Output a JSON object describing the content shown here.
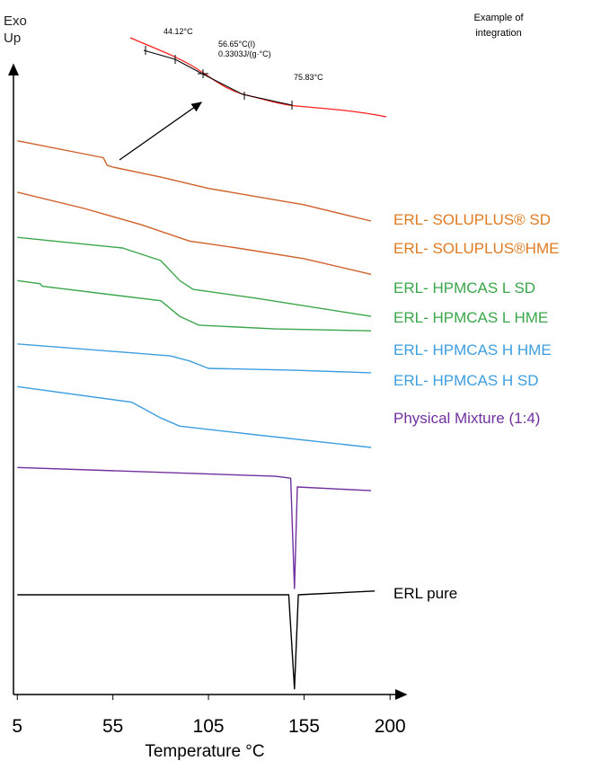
{
  "chart_data": {
    "type": "line",
    "y_label": "Exo\nUp",
    "x_label": "Temperature °C",
    "xlim": [
      3,
      206
    ],
    "ylim": [
      0,
      100
    ],
    "xticks": [
      5,
      55,
      105,
      155,
      200
    ],
    "inset_title": "Example of integration",
    "annotations": [
      "44.12°C",
      "56.65°C(I)",
      "0.3303J/(g·°C)",
      "75.83°C"
    ],
    "series": [
      {
        "name": "ERL- SOLUPLUS® SD",
        "color": "#d0602a",
        "x": [
          5,
          50,
          52,
          55,
          80,
          105,
          155,
          190
        ],
        "values": [
          88.3,
          85.6,
          84.4,
          84.1,
          82.5,
          80.7,
          78.1,
          75.5
        ]
      },
      {
        "name": "ERL- SOLUPLUS®HME",
        "color": "#d0602a",
        "x": [
          5,
          40,
          70,
          95,
          120,
          155,
          190
        ],
        "values": [
          80.1,
          77.5,
          74.9,
          72.3,
          71.2,
          69.5,
          67.0
        ]
      },
      {
        "name": "ERL- HPMCAS L SD",
        "color": "#3aa64a",
        "x": [
          5,
          60,
          80,
          90,
          97,
          130,
          190
        ],
        "values": [
          72.9,
          71.2,
          69.2,
          66.0,
          64.6,
          63.2,
          60.3
        ]
      },
      {
        "name": "ERL- HPMCAS L HME",
        "color": "#3aa64a",
        "x": [
          5,
          17,
          18,
          80,
          90,
          100,
          140,
          190
        ],
        "values": [
          66.0,
          65.5,
          65.1,
          62.8,
          60.3,
          58.9,
          58.3,
          58.0
        ]
      },
      {
        "name": "ERL- HPMCAS H HME",
        "color": "#3d9ee0",
        "x": [
          5,
          85,
          95,
          105,
          150,
          190
        ],
        "values": [
          55.9,
          54.0,
          53.2,
          52.0,
          51.7,
          51.3
        ]
      },
      {
        "name": "ERL- HPMCAS H SD",
        "color": "#3d9ee0",
        "x": [
          5,
          65,
          80,
          90,
          130,
          190
        ],
        "values": [
          49.1,
          46.6,
          44.1,
          42.8,
          41.4,
          39.4
        ]
      },
      {
        "name": "Physical Mixture (1:4)",
        "color": "#7030a0",
        "x": [
          5,
          140,
          148,
          150,
          151.5,
          190
        ],
        "values": [
          36.2,
          34.8,
          34.5,
          16.9,
          33.1,
          32.5
        ]
      },
      {
        "name": "ERL pure",
        "color": "#000000",
        "x": [
          5,
          147,
          150,
          152,
          192
        ],
        "values": [
          15.9,
          15.9,
          0.9,
          15.9,
          16.5
        ]
      }
    ]
  }
}
